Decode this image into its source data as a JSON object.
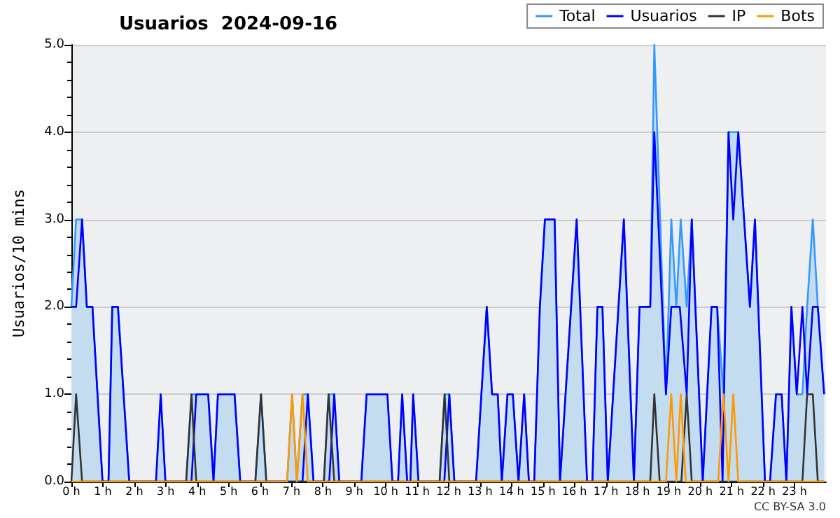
{
  "chart_data": {
    "type": "line",
    "title": "Usuarios  2024-09-16",
    "ylabel": "Usuarios/10 mins",
    "annotations": [
      "CC BY-SA 3.0"
    ],
    "xlim": [
      0,
      24
    ],
    "xticks": [
      {
        "value": 0,
        "label": "0 h"
      },
      {
        "value": 1,
        "label": "1 h"
      },
      {
        "value": 2,
        "label": "2 h"
      },
      {
        "value": 3,
        "label": "3 h"
      },
      {
        "value": 4,
        "label": "4 h"
      },
      {
        "value": 5,
        "label": "5 h"
      },
      {
        "value": 6,
        "label": "6 h"
      },
      {
        "value": 7,
        "label": "7 h"
      },
      {
        "value": 8,
        "label": "8 h"
      },
      {
        "value": 9,
        "label": "9 h"
      },
      {
        "value": 10,
        "label": "10 h"
      },
      {
        "value": 11,
        "label": "11 h"
      },
      {
        "value": 12,
        "label": "12 h"
      },
      {
        "value": 13,
        "label": "13 h"
      },
      {
        "value": 14,
        "label": "14 h"
      },
      {
        "value": 15,
        "label": "15 h"
      },
      {
        "value": 16,
        "label": "16 h"
      },
      {
        "value": 17,
        "label": "17 h"
      },
      {
        "value": 18,
        "label": "18 h"
      },
      {
        "value": 19,
        "label": "19 h"
      },
      {
        "value": 20,
        "label": "20 h"
      },
      {
        "value": 21,
        "label": "21 h"
      },
      {
        "value": 22,
        "label": "22 h"
      },
      {
        "value": 23,
        "label": "23 h"
      }
    ],
    "ylim": [
      0,
      5
    ],
    "yticks": [
      {
        "value": 0,
        "label": "0.0"
      },
      {
        "value": 0.2,
        "label": null
      },
      {
        "value": 0.4,
        "label": null
      },
      {
        "value": 0.6,
        "label": null
      },
      {
        "value": 0.8,
        "label": null
      },
      {
        "value": 1,
        "label": "1.0"
      },
      {
        "value": 1.2,
        "label": null
      },
      {
        "value": 1.4,
        "label": null
      },
      {
        "value": 1.6,
        "label": null
      },
      {
        "value": 1.8,
        "label": null
      },
      {
        "value": 2,
        "label": "2.0"
      },
      {
        "value": 2.2,
        "label": null
      },
      {
        "value": 2.4,
        "label": null
      },
      {
        "value": 2.6,
        "label": null
      },
      {
        "value": 2.8,
        "label": null
      },
      {
        "value": 3,
        "label": "3.0"
      },
      {
        "value": 3.2,
        "label": null
      },
      {
        "value": 3.4,
        "label": null
      },
      {
        "value": 3.6,
        "label": null
      },
      {
        "value": 3.8,
        "label": null
      },
      {
        "value": 4,
        "label": "4.0"
      },
      {
        "value": 4.2,
        "label": null
      },
      {
        "value": 4.4,
        "label": null
      },
      {
        "value": 4.6,
        "label": null
      },
      {
        "value": 4.8,
        "label": null
      },
      {
        "value": 5,
        "label": "5.0"
      }
    ],
    "grid": "y",
    "legend": "top right",
    "marker": "none",
    "series": [
      {
        "name": "Total",
        "type": "area",
        "color": "#3399ff",
        "x": [
          0,
          0.15,
          0.34,
          0.49,
          0.67,
          0.99,
          1.18,
          1.3,
          1.48,
          1.84,
          2.69,
          2.84,
          2.99,
          3.65,
          3.82,
          3.97,
          4.35,
          4.52,
          4.66,
          5.19,
          5.37,
          5.85,
          6.03,
          6.2,
          6.86,
          7.02,
          7.17,
          7.35,
          7.52,
          7.7,
          8.03,
          8.18,
          8.36,
          8.52,
          9.22,
          9.39,
          10.05,
          10.21,
          10.39,
          10.52,
          10.68,
          10.78,
          10.87,
          11.04,
          11.71,
          11.87,
          12.02,
          12.18,
          12.87,
          13.21,
          13.38,
          13.56,
          13.69,
          13.87,
          14.04,
          14.22,
          14.4,
          14.55,
          14.72,
          14.9,
          15.06,
          15.37,
          15.54,
          16.07,
          16.4,
          16.57,
          16.73,
          16.89,
          17.06,
          17.57,
          17.89,
          18.07,
          18.41,
          18.54,
          18.91,
          19.08,
          19.24,
          19.38,
          19.57,
          19.73,
          20.08,
          20.36,
          20.54,
          20.74,
          20.9,
          21.05,
          21.21,
          21.58,
          21.74,
          22.06,
          22.22,
          22.41,
          22.59,
          22.74,
          22.9,
          23.07,
          23.25,
          23.4,
          23.58,
          23.74,
          23.94
        ],
        "values": [
          2,
          3,
          3,
          2,
          2,
          0,
          0,
          2,
          2,
          0,
          0,
          1,
          0,
          0,
          1,
          1,
          1,
          0,
          1,
          1,
          0,
          0,
          1,
          0,
          0,
          1,
          0,
          1,
          1,
          0,
          0,
          1,
          1,
          0,
          0,
          1,
          1,
          0,
          0,
          1,
          0,
          0,
          1,
          0,
          0,
          1,
          1,
          0,
          0,
          2,
          1,
          1,
          0,
          1,
          1,
          0,
          1,
          0,
          0,
          2,
          3,
          3,
          0,
          3,
          0,
          0,
          2,
          2,
          0,
          3,
          0,
          2,
          2,
          5,
          1,
          3,
          2,
          3,
          2,
          3,
          0,
          2,
          2,
          1,
          4,
          4,
          4,
          2,
          3,
          0,
          0,
          1,
          1,
          0,
          2,
          1,
          1,
          2,
          3,
          2,
          1
        ]
      },
      {
        "name": "Usuarios",
        "color": "#0000ff",
        "x": [
          0,
          0.15,
          0.34,
          0.49,
          0.67,
          0.99,
          1.18,
          1.3,
          1.48,
          1.84,
          2.69,
          2.84,
          2.99,
          3.82,
          3.97,
          4.35,
          4.52,
          4.66,
          5.19,
          5.37,
          7.35,
          7.52,
          7.7,
          8.2,
          8.36,
          8.52,
          9.22,
          9.39,
          10.05,
          10.21,
          10.39,
          10.52,
          10.68,
          10.78,
          10.87,
          11.04,
          11.86,
          12.02,
          12.18,
          12.87,
          13.21,
          13.38,
          13.56,
          13.69,
          13.87,
          14.04,
          14.22,
          14.4,
          14.55,
          14.72,
          14.9,
          15.06,
          15.37,
          15.54,
          16.07,
          16.4,
          16.57,
          16.73,
          16.89,
          17.06,
          17.57,
          17.89,
          18.07,
          18.41,
          18.54,
          18.91,
          19.08,
          19.35,
          19.57,
          19.73,
          20.08,
          20.36,
          20.54,
          20.71,
          20.9,
          21.05,
          21.21,
          21.58,
          21.74,
          22.06,
          22.22,
          22.41,
          22.59,
          22.74,
          22.9,
          23.07,
          23.25,
          23.4,
          23.58,
          23.74,
          23.94
        ],
        "values": [
          2,
          2,
          3,
          2,
          2,
          0,
          0,
          2,
          2,
          0,
          0,
          1,
          0,
          0,
          1,
          1,
          0,
          1,
          1,
          0,
          0,
          1,
          0,
          0,
          1,
          0,
          0,
          1,
          1,
          0,
          0,
          1,
          0,
          0,
          1,
          0,
          0,
          1,
          0,
          0,
          2,
          1,
          1,
          0,
          1,
          1,
          0,
          1,
          0,
          0,
          2,
          3,
          3,
          0,
          3,
          0,
          0,
          2,
          2,
          0,
          3,
          0,
          2,
          2,
          4,
          1,
          2,
          2,
          1,
          3,
          0,
          2,
          2,
          0,
          4,
          3,
          4,
          2,
          3,
          0,
          0,
          1,
          1,
          0,
          2,
          1,
          2,
          1,
          2,
          2,
          1
        ]
      },
      {
        "name": "IP",
        "color": "#333333",
        "x": [
          0,
          0.15,
          0.34,
          3.65,
          3.82,
          3.97,
          5.85,
          6.03,
          6.2,
          8.03,
          8.18,
          8.36,
          11.71,
          11.87,
          12.02,
          18.41,
          18.54,
          18.71,
          19.4,
          19.57,
          19.73,
          23.25,
          23.4,
          23.58,
          23.74,
          23.94
        ],
        "values": [
          0,
          1,
          0,
          0,
          1,
          0,
          0,
          1,
          0,
          0,
          1,
          0,
          0,
          1,
          0,
          0,
          1,
          0,
          0,
          1,
          0,
          0,
          1,
          1,
          0,
          0
        ]
      },
      {
        "name": "Bots",
        "color": "#ff9900",
        "x": [
          0,
          6.86,
          7.02,
          7.17,
          7.35,
          7.52,
          18.91,
          19.08,
          19.24,
          19.38,
          19.54,
          20.57,
          20.74,
          20.9,
          21.05,
          21.21,
          23.94
        ],
        "values": [
          0,
          0,
          1,
          0,
          1,
          0,
          0,
          1,
          0,
          1,
          0,
          0,
          1,
          0,
          1,
          0,
          0
        ]
      }
    ]
  }
}
